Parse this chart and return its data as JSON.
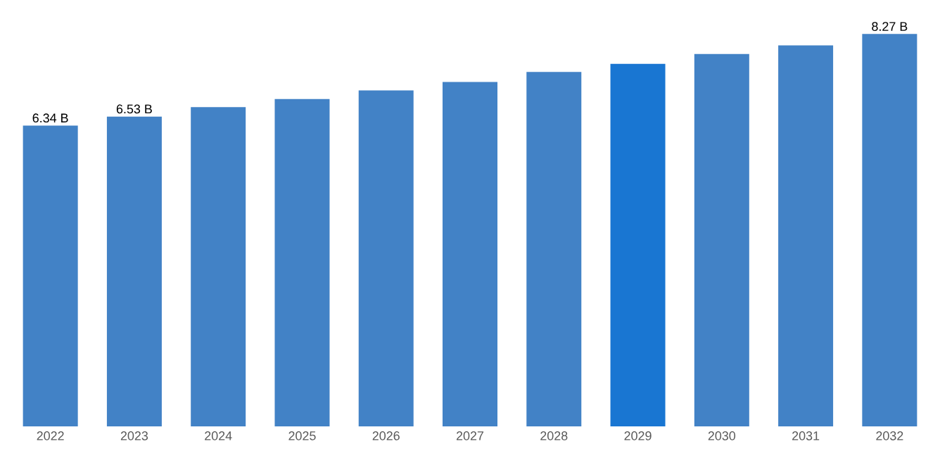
{
  "chart_data": {
    "type": "bar",
    "categories": [
      "2022",
      "2023",
      "2024",
      "2025",
      "2026",
      "2027",
      "2028",
      "2029",
      "2030",
      "2031",
      "2032"
    ],
    "values": [
      6.34,
      6.53,
      6.73,
      6.9,
      7.08,
      7.26,
      7.47,
      7.64,
      7.85,
      8.03,
      8.27
    ],
    "value_labels": [
      "6.34 B",
      "6.53 B",
      null,
      null,
      null,
      null,
      null,
      null,
      null,
      null,
      "8.27 B"
    ],
    "colors": [
      "#4282c6",
      "#4282c6",
      "#4282c6",
      "#4282c6",
      "#4282c6",
      "#4282c6",
      "#4282c6",
      "#1976d2",
      "#4282c6",
      "#4282c6",
      "#4282c6"
    ]
  }
}
